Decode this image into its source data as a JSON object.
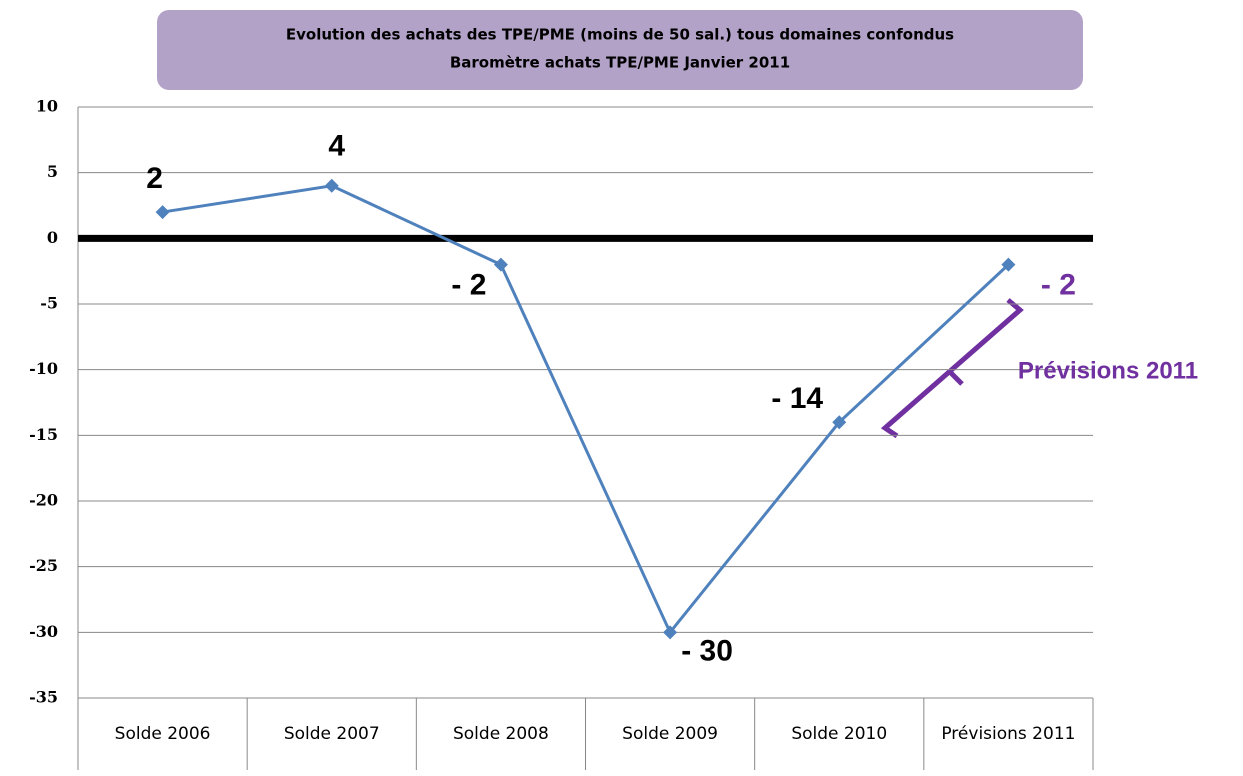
{
  "chart_data": {
    "type": "line",
    "title": "Evolution des achats des TPE/PME (moins de 50 sal.) tous domaines confondus",
    "subtitle": "Baromètre achats TPE/PME Janvier 2011",
    "categories": [
      "Solde 2006",
      "Solde 2007",
      "Solde 2008",
      "Solde 2009",
      "Solde 2010",
      "Prévisions 2011"
    ],
    "values": [
      2,
      4,
      -2,
      -30,
      -14,
      -2
    ],
    "value_labels": [
      "2",
      "4",
      "- 2",
      "- 30",
      "- 14",
      "- 2"
    ],
    "value_label_colors": [
      "#000000",
      "#000000",
      "#000000",
      "#000000",
      "#000000",
      "#7030a0"
    ],
    "color": "#4f81bd",
    "ylim": [
      -35,
      10
    ],
    "yticks": [
      -35,
      -30,
      -25,
      -20,
      -15,
      -10,
      -5,
      0,
      5,
      10
    ],
    "grid": true,
    "annotation": "Prévisions 2011",
    "annotation_color": "#7030a0"
  }
}
